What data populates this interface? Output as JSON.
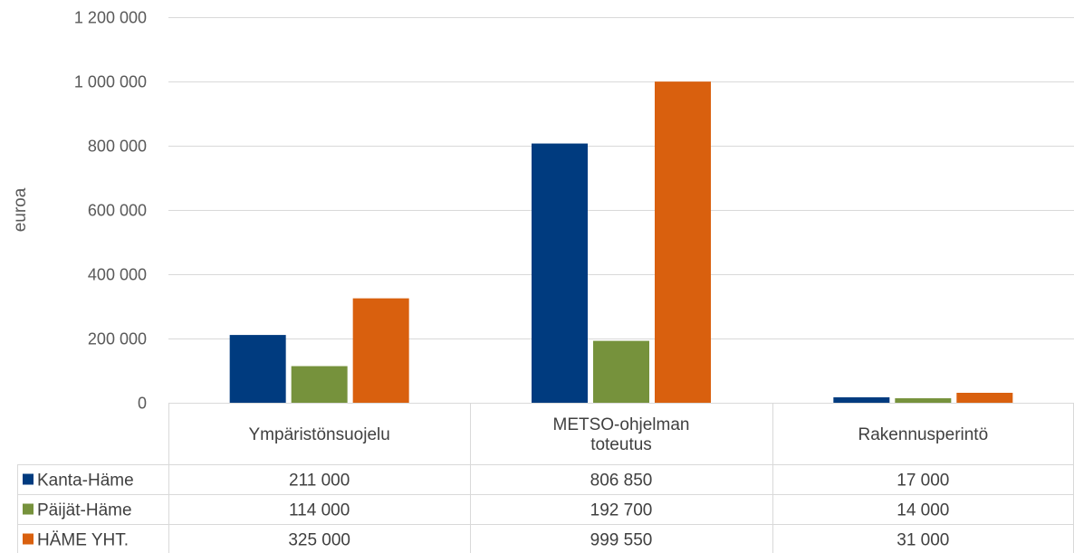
{
  "chart_data": {
    "type": "bar",
    "title": "",
    "xlabel": "",
    "ylabel": "euroa",
    "ylim": [
      0,
      1200000
    ],
    "yticks": [
      0,
      200000,
      400000,
      600000,
      800000,
      1000000,
      1200000
    ],
    "ytick_labels": [
      "0",
      "200 000",
      "400 000",
      "600 000",
      "800 000",
      "1 000 000",
      "1 200 000"
    ],
    "categories": [
      "Ympäristönsuojelu",
      "METSO-ohjelman toteutus",
      "Rakennusperintö"
    ],
    "category_lines": [
      [
        "Ympäristönsuojelu"
      ],
      [
        "METSO-ohjelman",
        "toteutus"
      ],
      [
        "Rakennusperintö"
      ]
    ],
    "series": [
      {
        "name": "Kanta-Häme",
        "values": [
          211000,
          806850,
          17000
        ],
        "labels": [
          "211 000",
          "806 850",
          "17 000"
        ],
        "color": "#003B7F"
      },
      {
        "name": "Päijät-Häme",
        "values": [
          114000,
          192700,
          14000
        ],
        "labels": [
          "114 000",
          "192 700",
          "14 000"
        ],
        "color": "#76923C"
      },
      {
        "name": "HÄME YHT.",
        "values": [
          325000,
          999550,
          31000
        ],
        "labels": [
          "325 000",
          "999 550",
          "31 000"
        ],
        "color": "#D9600E"
      }
    ],
    "grid": true,
    "legend": "data-table"
  }
}
